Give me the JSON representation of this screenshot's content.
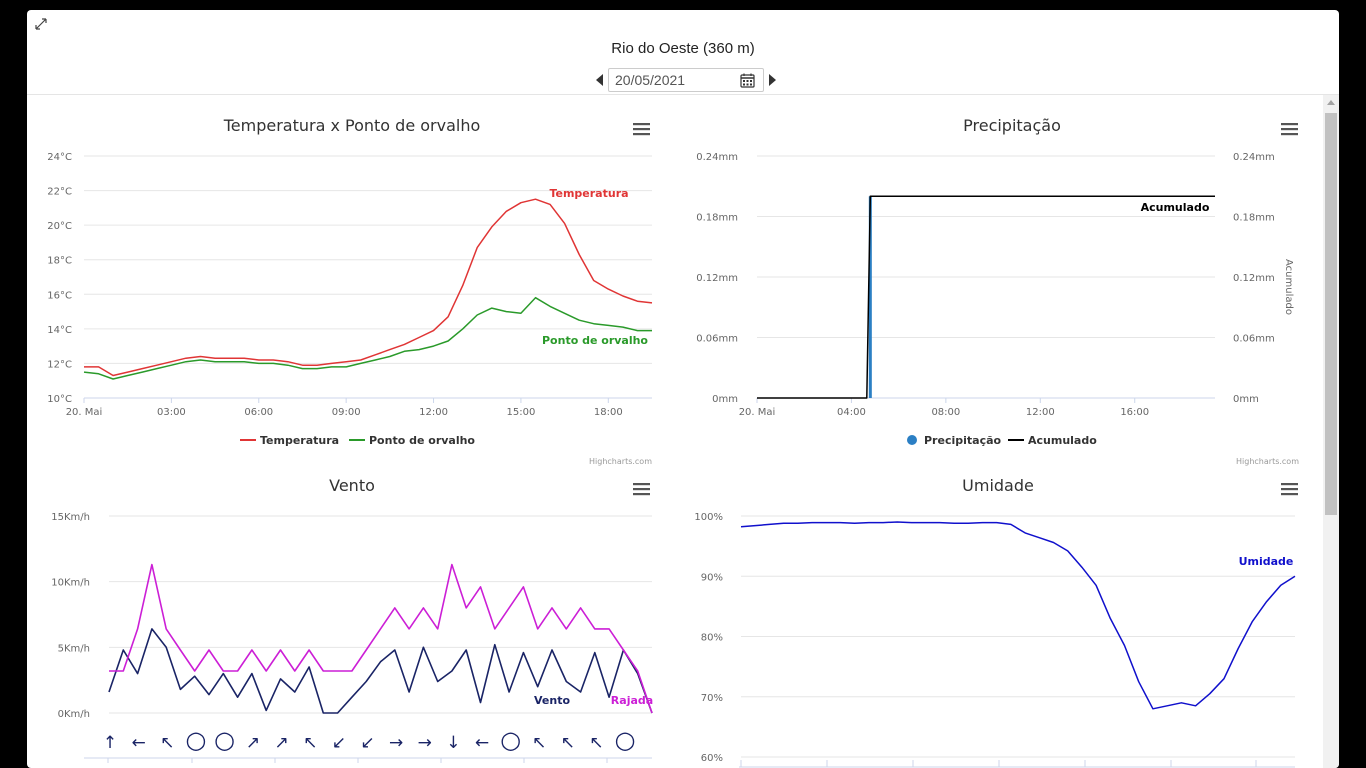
{
  "header": {
    "station": "Rio do Oeste (360 m)",
    "date": "20/05/2021"
  },
  "credits": "Highcharts.com",
  "chart_data": [
    {
      "type": "line",
      "title": "Temperatura x Ponto de orvalho",
      "x_ticks": [
        "20. Mai",
        "03:00",
        "06:00",
        "09:00",
        "12:00",
        "15:00",
        "18:00"
      ],
      "y_ticks": [
        "10°C",
        "12°C",
        "14°C",
        "16°C",
        "18°C",
        "20°C",
        "22°C",
        "24°C"
      ],
      "ylim": [
        10,
        24
      ],
      "series": [
        {
          "name": "Temperatura",
          "color": "#e03535",
          "x": [
            0,
            0.5,
            1,
            1.5,
            2,
            2.5,
            3,
            3.5,
            4,
            4.5,
            5,
            5.5,
            6,
            6.5,
            7,
            7.5,
            8,
            8.5,
            9,
            9.5,
            10,
            10.5,
            11,
            11.5,
            12,
            12.5,
            13,
            13.5,
            14,
            14.5,
            15,
            15.5,
            16,
            16.5,
            17,
            17.5,
            18,
            18.5,
            19,
            19.5
          ],
          "values": [
            11.8,
            11.8,
            11.3,
            11.5,
            11.7,
            11.9,
            12.1,
            12.3,
            12.4,
            12.3,
            12.3,
            12.3,
            12.2,
            12.2,
            12.1,
            11.9,
            11.9,
            12.0,
            12.1,
            12.2,
            12.5,
            12.8,
            13.1,
            13.5,
            13.9,
            14.7,
            16.5,
            18.7,
            19.9,
            20.8,
            21.3,
            21.5,
            21.2,
            20.1,
            18.3,
            16.8,
            16.3,
            15.9,
            15.6,
            15.5
          ]
        },
        {
          "name": "Ponto de orvalho",
          "color": "#2a9a2a",
          "x": [
            0,
            0.5,
            1,
            1.5,
            2,
            2.5,
            3,
            3.5,
            4,
            4.5,
            5,
            5.5,
            6,
            6.5,
            7,
            7.5,
            8,
            8.5,
            9,
            9.5,
            10,
            10.5,
            11,
            11.5,
            12,
            12.5,
            13,
            13.5,
            14,
            14.5,
            15,
            15.5,
            16,
            16.5,
            17,
            17.5,
            18,
            18.5,
            19,
            19.5
          ],
          "values": [
            11.5,
            11.4,
            11.1,
            11.3,
            11.5,
            11.7,
            11.9,
            12.1,
            12.2,
            12.1,
            12.1,
            12.1,
            12.0,
            12.0,
            11.9,
            11.7,
            11.7,
            11.8,
            11.8,
            12.0,
            12.2,
            12.4,
            12.7,
            12.8,
            13.0,
            13.3,
            14.0,
            14.8,
            15.2,
            15.0,
            14.9,
            15.8,
            15.3,
            14.9,
            14.5,
            14.3,
            14.2,
            14.1,
            13.9,
            13.9
          ]
        }
      ]
    },
    {
      "type": "line",
      "title": "Precipitação",
      "x_ticks": [
        "20. Mai",
        "04:00",
        "08:00",
        "12:00",
        "16:00"
      ],
      "y_ticks": [
        "0mm",
        "0.06mm",
        "0.12mm",
        "0.18mm",
        "0.24mm"
      ],
      "y2_ticks": [
        "0mm",
        "0.06mm",
        "0.12mm",
        "0.18mm",
        "0.24mm"
      ],
      "y2_label": "Acumulado",
      "ylim": [
        0,
        0.24
      ],
      "series": [
        {
          "name": "Precipitação",
          "type": "column",
          "color": "#2b7fc4",
          "x": [
            4.8
          ],
          "values": [
            0.2
          ]
        },
        {
          "name": "Acumulado",
          "color": "#000000",
          "x": [
            0,
            4.65,
            4.8,
            19.4
          ],
          "values": [
            0,
            0,
            0.2,
            0.2
          ]
        }
      ]
    },
    {
      "type": "line",
      "title": "Vento",
      "y_ticks": [
        "0Km/h",
        "5Km/h",
        "10Km/h",
        "15Km/h"
      ],
      "ylim": [
        0,
        15
      ],
      "series": [
        {
          "name": "Vento",
          "color": "#1a2466",
          "x": [
            0,
            0.5,
            1,
            1.5,
            2,
            2.5,
            3,
            3.5,
            4,
            4.5,
            5,
            5.5,
            6,
            6.5,
            7,
            7.5,
            8,
            8.5,
            9,
            9.5,
            10,
            10.5,
            11,
            11.5,
            12,
            12.5,
            13,
            13.5,
            14,
            14.5,
            15,
            15.5,
            16,
            16.5,
            17,
            17.5,
            18,
            18.5,
            19
          ],
          "values": [
            1.6,
            4.8,
            3.0,
            6.4,
            5.0,
            1.8,
            2.8,
            1.4,
            3.0,
            1.2,
            3.0,
            0.2,
            2.6,
            1.6,
            3.5,
            0.0,
            0.0,
            1.2,
            2.4,
            3.9,
            4.8,
            1.6,
            5.0,
            2.4,
            3.2,
            4.8,
            0.8,
            5.2,
            1.6,
            4.6,
            2.0,
            4.8,
            2.4,
            1.6,
            4.6,
            1.2,
            4.8,
            3.0,
            0.0
          ]
        },
        {
          "name": "Rajada",
          "color": "#cc1fd6",
          "x": [
            0,
            0.5,
            1,
            1.5,
            2,
            2.5,
            3,
            3.5,
            4,
            4.5,
            5,
            5.5,
            6,
            6.5,
            7,
            7.5,
            8,
            8.5,
            9,
            9.5,
            10,
            10.5,
            11,
            11.5,
            12,
            12.5,
            13,
            13.5,
            14,
            14.5,
            15,
            15.5,
            16,
            16.5,
            17,
            17.5,
            18,
            18.5,
            19
          ],
          "values": [
            3.2,
            3.2,
            6.4,
            11.3,
            6.4,
            4.8,
            3.2,
            4.8,
            3.2,
            3.2,
            4.8,
            3.2,
            4.8,
            3.2,
            4.8,
            3.2,
            3.2,
            3.2,
            4.8,
            6.4,
            8.0,
            6.4,
            8.0,
            6.4,
            11.3,
            8.0,
            9.6,
            6.4,
            8.0,
            9.6,
            6.4,
            8.0,
            6.4,
            8.0,
            6.4,
            6.4,
            4.8,
            3.2,
            0.0
          ]
        }
      ]
    },
    {
      "type": "line",
      "title": "Umidade",
      "y_ticks": [
        "60%",
        "70%",
        "80%",
        "90%",
        "100%"
      ],
      "ylim": [
        60,
        100
      ],
      "series": [
        {
          "name": "Umidade",
          "color": "#1010cc",
          "x": [
            0,
            0.5,
            1,
            1.5,
            2,
            2.5,
            3,
            3.5,
            4,
            4.5,
            5,
            5.5,
            6,
            6.5,
            7,
            7.5,
            8,
            8.5,
            9,
            9.5,
            10,
            10.5,
            11,
            11.5,
            12,
            12.5,
            13,
            13.5,
            14,
            14.5,
            15,
            15.5,
            16,
            16.5,
            17,
            17.5,
            18,
            18.5,
            19,
            19.5
          ],
          "values": [
            98.2,
            98.4,
            98.6,
            98.8,
            98.8,
            98.9,
            98.9,
            98.9,
            98.8,
            98.9,
            98.9,
            99.0,
            98.9,
            98.9,
            98.9,
            98.8,
            98.8,
            98.9,
            98.9,
            98.6,
            97.2,
            96.4,
            95.6,
            94.2,
            91.5,
            88.5,
            83.0,
            78.5,
            72.5,
            68.0,
            68.5,
            69.0,
            68.5,
            70.5,
            73.0,
            78.0,
            82.5,
            85.8,
            88.5,
            90.0
          ]
        }
      ]
    }
  ],
  "wind_directions": [
    "↑",
    "←",
    "↖",
    "○",
    "○",
    "↗",
    "↗",
    "↖",
    "↙",
    "↙",
    "→",
    "→",
    "↓",
    "←",
    "○",
    "↖",
    "↖",
    "↖",
    "○"
  ]
}
